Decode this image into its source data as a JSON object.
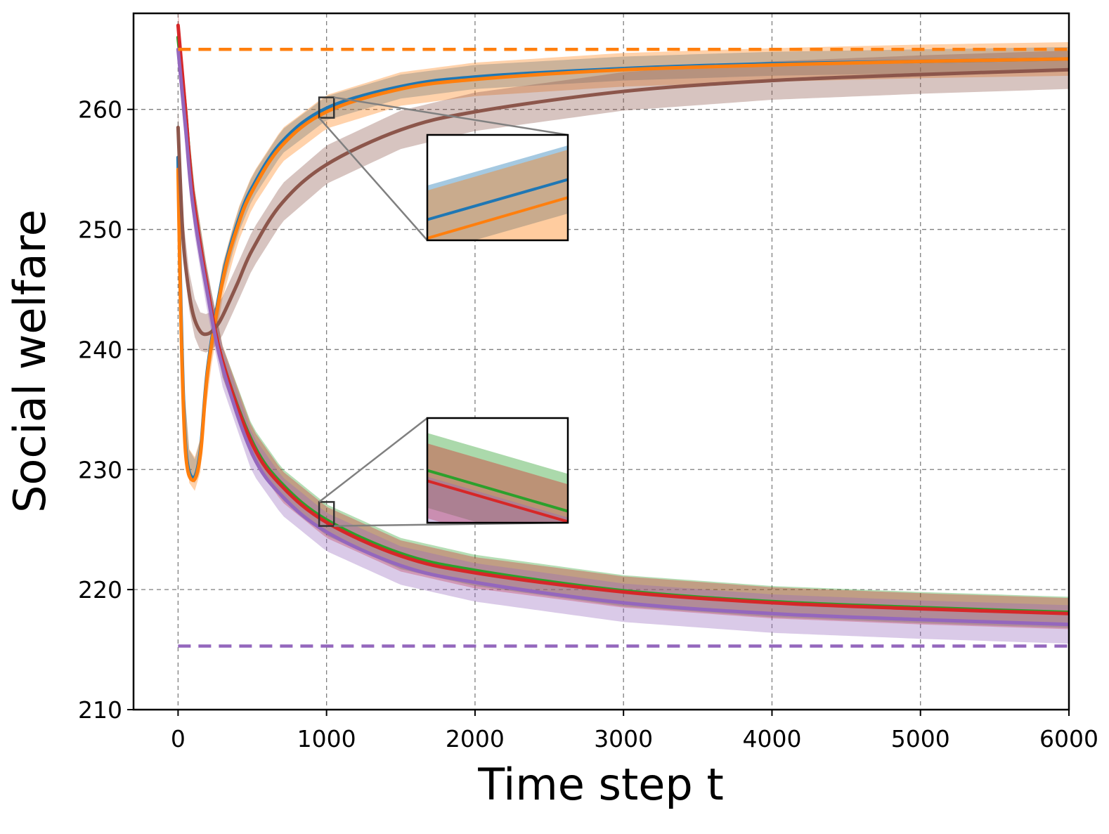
{
  "chart_data": {
    "type": "line",
    "xlabel": "Time step t",
    "ylabel": "Social welfare",
    "xlim": [
      -300,
      6000
    ],
    "ylim": [
      210,
      268
    ],
    "x_ticks": [
      0,
      1000,
      2000,
      3000,
      4000,
      5000,
      6000
    ],
    "y_ticks": [
      210,
      220,
      230,
      240,
      250,
      260
    ],
    "grid": true,
    "legend": "none",
    "reference_lines": [
      {
        "y": 265,
        "color": "#ff7f0e",
        "style": "dashed"
      },
      {
        "y": 215.3,
        "color": "#9467bd",
        "style": "dashed"
      }
    ],
    "series": [
      {
        "color": "#1f77b4",
        "band": 1.0,
        "x": [
          0,
          20,
          50,
          100,
          150,
          200,
          300,
          400,
          500,
          700,
          1000,
          1500,
          2000,
          3000,
          4000,
          5000,
          6000
        ],
        "y": [
          256,
          243,
          232,
          229.3,
          231.5,
          238.5,
          246,
          250.5,
          253.5,
          257.3,
          260.1,
          261.9,
          262.7,
          263.4,
          263.8,
          264.0,
          264.2
        ]
      },
      {
        "color": "#ff7f0e",
        "band": 1.4,
        "x": [
          0,
          20,
          50,
          100,
          150,
          200,
          300,
          400,
          500,
          700,
          1000,
          1500,
          2000,
          3000,
          4000,
          5000,
          6000
        ],
        "y": [
          255,
          242,
          231.5,
          229.1,
          231.2,
          238.2,
          245.7,
          250.2,
          253.2,
          257.0,
          259.8,
          261.7,
          262.5,
          263.3,
          263.7,
          264.0,
          264.2
        ]
      },
      {
        "color": "#8c564b",
        "band": 1.6,
        "x": [
          0,
          30,
          60,
          100,
          150,
          200,
          250,
          300,
          400,
          500,
          700,
          1000,
          1500,
          2000,
          3000,
          4000,
          5000,
          6000
        ],
        "y": [
          258.5,
          250,
          246,
          243,
          241.5,
          241.3,
          241.8,
          242.8,
          245.5,
          248.3,
          252.2,
          255.4,
          258.3,
          259.8,
          261.5,
          262.4,
          262.9,
          263.3
        ]
      },
      {
        "color": "#2ca02c",
        "band": 1.3,
        "x": [
          0,
          50,
          100,
          200,
          300,
          500,
          700,
          1000,
          1500,
          2000,
          3000,
          4000,
          5000,
          6000
        ],
        "y": [
          266,
          260,
          253,
          245,
          239,
          232.3,
          228.8,
          225.8,
          223.0,
          221.6,
          219.9,
          219.0,
          218.5,
          218.1
        ]
      },
      {
        "color": "#d62728",
        "band": 1.3,
        "x": [
          0,
          50,
          100,
          200,
          300,
          500,
          700,
          1000,
          1500,
          2000,
          3000,
          4000,
          5000,
          6000
        ],
        "y": [
          267,
          260,
          253,
          245,
          239,
          232.1,
          228.6,
          225.6,
          222.8,
          221.4,
          219.8,
          218.9,
          218.4,
          218.0
        ]
      },
      {
        "color": "#9467bd",
        "band": 1.6,
        "x": [
          0,
          50,
          100,
          200,
          300,
          500,
          700,
          1000,
          1500,
          2000,
          3000,
          4000,
          5000,
          6000
        ],
        "y": [
          265,
          258.5,
          252,
          244.5,
          238.5,
          231.3,
          227.8,
          224.8,
          222.0,
          220.6,
          218.9,
          218.0,
          217.5,
          217.1
        ]
      }
    ],
    "insets": [
      {
        "x_range": [
          950,
          1050
        ],
        "y_range": [
          259.3,
          261.0
        ],
        "series": [
          "#1f77b4",
          "#ff7f0e"
        ]
      },
      {
        "x_range": [
          950,
          1050
        ],
        "y_range": [
          225.3,
          227.3
        ],
        "series": [
          "#2ca02c",
          "#d62728",
          "#9467bd"
        ]
      }
    ]
  }
}
